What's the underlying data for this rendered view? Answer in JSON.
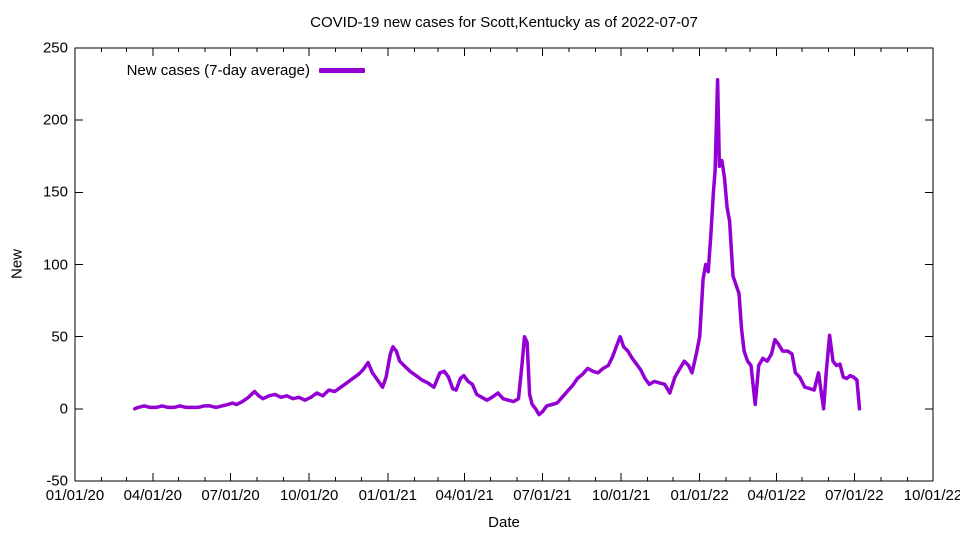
{
  "window": {
    "background": "#ffffff",
    "foreground": "#000000"
  },
  "chart_data": {
    "type": "line",
    "title": "COVID-19 new cases for Scott,Kentucky as of 2022-07-07",
    "xlabel": "Date",
    "ylabel": "New",
    "legend": {
      "label": "New cases (7-day average)",
      "position": "top-left-inside"
    },
    "line_color": "#9400d3",
    "axis_color": "#000000",
    "grid": false,
    "xlim": [
      "2020-01-01",
      "2022-10-01"
    ],
    "ylim": [
      -50,
      250
    ],
    "yticks": [
      -50,
      0,
      50,
      100,
      150,
      200,
      250
    ],
    "xticks": [
      {
        "label": "01/01/20",
        "date": "2020-01-01"
      },
      {
        "label": "04/01/20",
        "date": "2020-04-01"
      },
      {
        "label": "07/01/20",
        "date": "2020-07-01"
      },
      {
        "label": "10/01/20",
        "date": "2020-10-01"
      },
      {
        "label": "01/01/21",
        "date": "2021-01-01"
      },
      {
        "label": "04/01/21",
        "date": "2021-04-01"
      },
      {
        "label": "07/01/21",
        "date": "2021-07-01"
      },
      {
        "label": "10/01/21",
        "date": "2021-10-01"
      },
      {
        "label": "01/01/22",
        "date": "2022-01-01"
      },
      {
        "label": "04/01/22",
        "date": "2022-04-01"
      },
      {
        "label": "07/01/22",
        "date": "2022-07-01"
      },
      {
        "label": "10/01/22",
        "date": "2022-10-01"
      }
    ],
    "minor_xticks": "monthly",
    "series": [
      {
        "name": "New cases (7-day average)",
        "points": [
          [
            "2020-03-11",
            0
          ],
          [
            "2020-03-15",
            1
          ],
          [
            "2020-03-22",
            2
          ],
          [
            "2020-03-29",
            1
          ],
          [
            "2020-04-05",
            1
          ],
          [
            "2020-04-12",
            2
          ],
          [
            "2020-04-19",
            1
          ],
          [
            "2020-04-26",
            1
          ],
          [
            "2020-05-03",
            2
          ],
          [
            "2020-05-10",
            1
          ],
          [
            "2020-05-17",
            1
          ],
          [
            "2020-05-24",
            1
          ],
          [
            "2020-05-31",
            2
          ],
          [
            "2020-06-07",
            2
          ],
          [
            "2020-06-14",
            1
          ],
          [
            "2020-06-21",
            2
          ],
          [
            "2020-06-28",
            3
          ],
          [
            "2020-07-03",
            4
          ],
          [
            "2020-07-08",
            3
          ],
          [
            "2020-07-15",
            5
          ],
          [
            "2020-07-22",
            8
          ],
          [
            "2020-07-29",
            12
          ],
          [
            "2020-08-03",
            9
          ],
          [
            "2020-08-08",
            7
          ],
          [
            "2020-08-15",
            9
          ],
          [
            "2020-08-22",
            10
          ],
          [
            "2020-08-29",
            8
          ],
          [
            "2020-09-05",
            9
          ],
          [
            "2020-09-12",
            7
          ],
          [
            "2020-09-19",
            8
          ],
          [
            "2020-09-26",
            6
          ],
          [
            "2020-10-03",
            8
          ],
          [
            "2020-10-10",
            11
          ],
          [
            "2020-10-17",
            9
          ],
          [
            "2020-10-24",
            13
          ],
          [
            "2020-10-31",
            12
          ],
          [
            "2020-11-07",
            15
          ],
          [
            "2020-11-14",
            18
          ],
          [
            "2020-11-21",
            21
          ],
          [
            "2020-11-28",
            24
          ],
          [
            "2020-12-03",
            27
          ],
          [
            "2020-12-09",
            32
          ],
          [
            "2020-12-14",
            25
          ],
          [
            "2020-12-20",
            20
          ],
          [
            "2020-12-26",
            15
          ],
          [
            "2020-12-30",
            22
          ],
          [
            "2021-01-04",
            38
          ],
          [
            "2021-01-07",
            43
          ],
          [
            "2021-01-11",
            40
          ],
          [
            "2021-01-15",
            33
          ],
          [
            "2021-01-20",
            30
          ],
          [
            "2021-01-27",
            26
          ],
          [
            "2021-02-03",
            23
          ],
          [
            "2021-02-10",
            20
          ],
          [
            "2021-02-17",
            18
          ],
          [
            "2021-02-24",
            15
          ],
          [
            "2021-03-03",
            25
          ],
          [
            "2021-03-08",
            26
          ],
          [
            "2021-03-13",
            22
          ],
          [
            "2021-03-18",
            14
          ],
          [
            "2021-03-22",
            13
          ],
          [
            "2021-03-27",
            21
          ],
          [
            "2021-03-31",
            23
          ],
          [
            "2021-04-05",
            19
          ],
          [
            "2021-04-10",
            17
          ],
          [
            "2021-04-15",
            10
          ],
          [
            "2021-04-21",
            8
          ],
          [
            "2021-04-27",
            6
          ],
          [
            "2021-05-03",
            8
          ],
          [
            "2021-05-10",
            11
          ],
          [
            "2021-05-16",
            7
          ],
          [
            "2021-05-22",
            6
          ],
          [
            "2021-05-28",
            5
          ],
          [
            "2021-06-03",
            7
          ],
          [
            "2021-06-07",
            30
          ],
          [
            "2021-06-10",
            50
          ],
          [
            "2021-06-13",
            46
          ],
          [
            "2021-06-16",
            10
          ],
          [
            "2021-06-19",
            3
          ],
          [
            "2021-06-23",
            0
          ],
          [
            "2021-06-27",
            -4
          ],
          [
            "2021-07-01",
            -2
          ],
          [
            "2021-07-06",
            2
          ],
          [
            "2021-07-12",
            3
          ],
          [
            "2021-07-18",
            4
          ],
          [
            "2021-07-24",
            8
          ],
          [
            "2021-07-30",
            12
          ],
          [
            "2021-08-05",
            16
          ],
          [
            "2021-08-11",
            21
          ],
          [
            "2021-08-17",
            24
          ],
          [
            "2021-08-23",
            28
          ],
          [
            "2021-08-29",
            26
          ],
          [
            "2021-09-04",
            25
          ],
          [
            "2021-09-10",
            28
          ],
          [
            "2021-09-16",
            30
          ],
          [
            "2021-09-21",
            36
          ],
          [
            "2021-09-26",
            44
          ],
          [
            "2021-09-30",
            50
          ],
          [
            "2021-10-04",
            43
          ],
          [
            "2021-10-09",
            40
          ],
          [
            "2021-10-14",
            35
          ],
          [
            "2021-10-19",
            31
          ],
          [
            "2021-10-24",
            27
          ],
          [
            "2021-10-29",
            21
          ],
          [
            "2021-11-03",
            17
          ],
          [
            "2021-11-09",
            19
          ],
          [
            "2021-11-15",
            18
          ],
          [
            "2021-11-21",
            17
          ],
          [
            "2021-11-27",
            11
          ],
          [
            "2021-12-03",
            22
          ],
          [
            "2021-12-09",
            28
          ],
          [
            "2021-12-14",
            33
          ],
          [
            "2021-12-19",
            30
          ],
          [
            "2021-12-23",
            25
          ],
          [
            "2021-12-28",
            38
          ],
          [
            "2022-01-01",
            50
          ],
          [
            "2022-01-05",
            90
          ],
          [
            "2022-01-08",
            100
          ],
          [
            "2022-01-11",
            95
          ],
          [
            "2022-01-14",
            120
          ],
          [
            "2022-01-17",
            150
          ],
          [
            "2022-01-19",
            165
          ],
          [
            "2022-01-22",
            228
          ],
          [
            "2022-01-24",
            168
          ],
          [
            "2022-01-27",
            172
          ],
          [
            "2022-01-30",
            160
          ],
          [
            "2022-02-02",
            140
          ],
          [
            "2022-02-05",
            130
          ],
          [
            "2022-02-09",
            92
          ],
          [
            "2022-02-13",
            85
          ],
          [
            "2022-02-16",
            80
          ],
          [
            "2022-02-19",
            55
          ],
          [
            "2022-02-22",
            40
          ],
          [
            "2022-02-26",
            33
          ],
          [
            "2022-03-02",
            30
          ],
          [
            "2022-03-07",
            3
          ],
          [
            "2022-03-11",
            30
          ],
          [
            "2022-03-16",
            35
          ],
          [
            "2022-03-21",
            33
          ],
          [
            "2022-03-26",
            38
          ],
          [
            "2022-03-30",
            48
          ],
          [
            "2022-04-03",
            45
          ],
          [
            "2022-04-08",
            40
          ],
          [
            "2022-04-14",
            40
          ],
          [
            "2022-04-19",
            38
          ],
          [
            "2022-04-23",
            25
          ],
          [
            "2022-04-28",
            22
          ],
          [
            "2022-05-04",
            15
          ],
          [
            "2022-05-10",
            14
          ],
          [
            "2022-05-15",
            13
          ],
          [
            "2022-05-20",
            25
          ],
          [
            "2022-05-26",
            0
          ],
          [
            "2022-05-29",
            25
          ],
          [
            "2022-06-02",
            51
          ],
          [
            "2022-06-06",
            33
          ],
          [
            "2022-06-10",
            30
          ],
          [
            "2022-06-14",
            31
          ],
          [
            "2022-06-18",
            22
          ],
          [
            "2022-06-22",
            21
          ],
          [
            "2022-06-26",
            23
          ],
          [
            "2022-06-30",
            22
          ],
          [
            "2022-07-04",
            20
          ],
          [
            "2022-07-07",
            0
          ]
        ]
      }
    ]
  }
}
